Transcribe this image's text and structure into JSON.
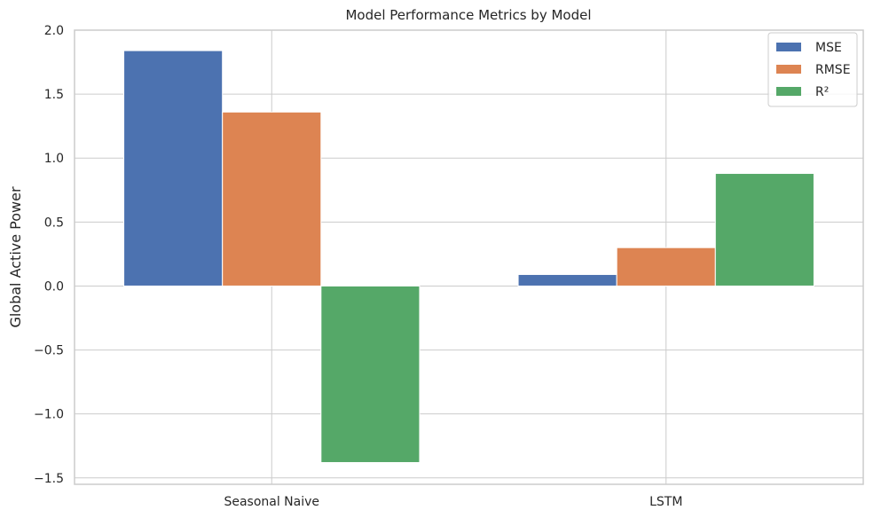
{
  "chart_data": {
    "type": "bar",
    "title": "Model Performance Metrics by Model",
    "xlabel": "",
    "ylabel": "Global Active Power",
    "categories": [
      "Seasonal Naive",
      "LSTM"
    ],
    "series": [
      {
        "name": "MSE",
        "color": "#4c72b0",
        "values": [
          1.84,
          0.09
        ]
      },
      {
        "name": "RMSE",
        "color": "#dd8452",
        "values": [
          1.36,
          0.3
        ]
      },
      {
        "name": "R²",
        "color": "#55a868",
        "values": [
          -1.38,
          0.88
        ]
      }
    ],
    "ylim": [
      -1.55,
      2.0
    ],
    "yticks": [
      -1.5,
      -1.0,
      -0.5,
      0.0,
      0.5,
      1.0,
      1.5,
      2.0
    ],
    "ytick_labels": [
      "−1.5",
      "−1.0",
      "−0.5",
      "0.0",
      "0.5",
      "1.0",
      "1.5",
      "2.0"
    ],
    "grid": true,
    "legend_position": "top-right"
  }
}
